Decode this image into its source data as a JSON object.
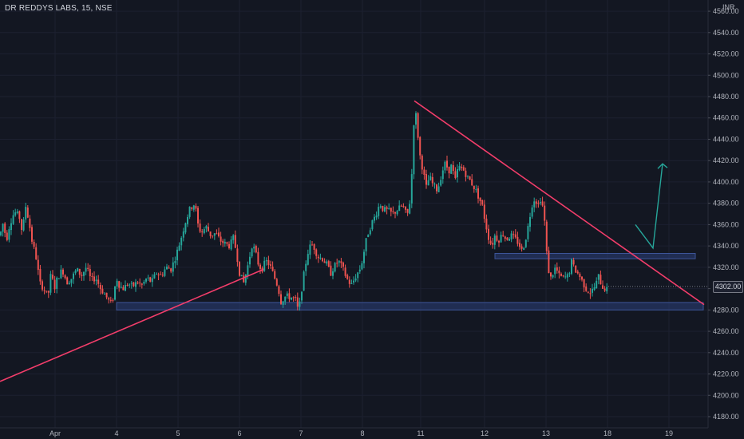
{
  "header": {
    "title": "DR REDDYS LABS, 15, NSE",
    "currency": "INR"
  },
  "current_price_label": "4302.00",
  "colors": {
    "background": "#131722",
    "up": "#26a69a",
    "down": "#ef5350",
    "trendline": "#f23d6a",
    "zone": "#2b3f7a",
    "arrow": "#26a69a",
    "grid": "#1c2030"
  },
  "chart_data": {
    "type": "candlestick",
    "title": "DR REDDYS LABS, 15, NSE",
    "x_ticks": [
      "Apr",
      "4",
      "5",
      "6",
      "7",
      "8",
      "11",
      "12",
      "13",
      "18",
      "19"
    ],
    "y_ticks": [
      4180,
      4200,
      4220,
      4240,
      4260,
      4280,
      4300,
      4320,
      4340,
      4360,
      4380,
      4400,
      4420,
      4440,
      4460,
      4480,
      4500,
      4520,
      4540,
      4560
    ],
    "ylim": [
      4170,
      4570
    ],
    "price_path": [
      [
        0,
        4350
      ],
      [
        4,
        4362
      ],
      [
        8,
        4345
      ],
      [
        12,
        4360
      ],
      [
        18,
        4372
      ],
      [
        24,
        4368
      ],
      [
        28,
        4352
      ],
      [
        32,
        4378
      ],
      [
        36,
        4364
      ],
      [
        40,
        4345
      ],
      [
        45,
        4330
      ],
      [
        50,
        4305
      ],
      [
        55,
        4300
      ],
      [
        60,
        4292
      ],
      [
        64,
        4315
      ],
      [
        68,
        4300
      ],
      [
        72,
        4310
      ],
      [
        78,
        4318
      ],
      [
        84,
        4306
      ],
      [
        90,
        4310
      ],
      [
        96,
        4318
      ],
      [
        102,
        4312
      ],
      [
        108,
        4320
      ],
      [
        114,
        4308
      ],
      [
        120,
        4310
      ],
      [
        126,
        4300
      ],
      [
        131,
        4295
      ],
      [
        135,
        4290
      ],
      [
        140,
        4285
      ],
      [
        146,
        4310
      ],
      [
        150,
        4302
      ],
      [
        155,
        4300
      ],
      [
        160,
        4305
      ],
      [
        166,
        4302
      ],
      [
        172,
        4306
      ],
      [
        178,
        4303
      ],
      [
        184,
        4310
      ],
      [
        190,
        4306
      ],
      [
        196,
        4315
      ],
      [
        202,
        4312
      ],
      [
        208,
        4320
      ],
      [
        214,
        4318
      ],
      [
        220,
        4330
      ],
      [
        226,
        4345
      ],
      [
        232,
        4362
      ],
      [
        238,
        4375
      ],
      [
        244,
        4380
      ],
      [
        248,
        4360
      ],
      [
        252,
        4352
      ],
      [
        258,
        4358
      ],
      [
        264,
        4350
      ],
      [
        270,
        4352
      ],
      [
        276,
        4345
      ],
      [
        282,
        4342
      ],
      [
        288,
        4340
      ],
      [
        292,
        4348
      ],
      [
        296,
        4335
      ],
      [
        300,
        4315
      ],
      [
        305,
        4305
      ],
      [
        310,
        4320
      ],
      [
        316,
        4342
      ],
      [
        320,
        4334
      ],
      [
        324,
        4322
      ],
      [
        328,
        4318
      ],
      [
        333,
        4326
      ],
      [
        338,
        4322
      ],
      [
        344,
        4310
      ],
      [
        348,
        4302
      ],
      [
        352,
        4288
      ],
      [
        358,
        4293
      ],
      [
        364,
        4292
      ],
      [
        370,
        4290
      ],
      [
        374,
        4278
      ],
      [
        378,
        4300
      ],
      [
        382,
        4320
      ],
      [
        386,
        4335
      ],
      [
        390,
        4342
      ],
      [
        394,
        4338
      ],
      [
        398,
        4330
      ],
      [
        404,
        4328
      ],
      [
        410,
        4322
      ],
      [
        414,
        4314
      ],
      [
        418,
        4320
      ],
      [
        424,
        4326
      ],
      [
        430,
        4318
      ],
      [
        434,
        4310
      ],
      [
        440,
        4303
      ],
      [
        446,
        4312
      ],
      [
        452,
        4320
      ],
      [
        456,
        4335
      ],
      [
        460,
        4350
      ],
      [
        466,
        4362
      ],
      [
        470,
        4368
      ],
      [
        476,
        4380
      ],
      [
        480,
        4374
      ],
      [
        486,
        4373
      ],
      [
        492,
        4370
      ],
      [
        498,
        4374
      ],
      [
        504,
        4378
      ],
      [
        510,
        4368
      ],
      [
        514,
        4384
      ],
      [
        516,
        4410
      ],
      [
        518,
        4452
      ],
      [
        520,
        4470
      ],
      [
        522,
        4455
      ],
      [
        526,
        4425
      ],
      [
        530,
        4410
      ],
      [
        534,
        4395
      ],
      [
        538,
        4405
      ],
      [
        542,
        4398
      ],
      [
        548,
        4392
      ],
      [
        554,
        4410
      ],
      [
        558,
        4418
      ],
      [
        562,
        4410
      ],
      [
        566,
        4416
      ],
      [
        570,
        4400
      ],
      [
        574,
        4414
      ],
      [
        580,
        4412
      ],
      [
        586,
        4404
      ],
      [
        590,
        4400
      ],
      [
        596,
        4392
      ],
      [
        600,
        4385
      ],
      [
        604,
        4378
      ],
      [
        608,
        4362
      ],
      [
        612,
        4348
      ],
      [
        616,
        4340
      ],
      [
        620,
        4350
      ],
      [
        624,
        4345
      ],
      [
        630,
        4352
      ],
      [
        634,
        4346
      ],
      [
        640,
        4350
      ],
      [
        646,
        4346
      ],
      [
        650,
        4342
      ],
      [
        654,
        4335
      ],
      [
        658,
        4345
      ],
      [
        662,
        4360
      ],
      [
        666,
        4378
      ],
      [
        670,
        4385
      ],
      [
        674,
        4378
      ],
      [
        678,
        4386
      ],
      [
        682,
        4365
      ],
      [
        686,
        4320
      ],
      [
        690,
        4310
      ],
      [
        696,
        4320
      ],
      [
        700,
        4312
      ],
      [
        706,
        4310
      ],
      [
        712,
        4312
      ],
      [
        716,
        4325
      ],
      [
        720,
        4318
      ],
      [
        726,
        4312
      ],
      [
        730,
        4306
      ],
      [
        734,
        4300
      ],
      [
        740,
        4296
      ],
      [
        746,
        4303
      ],
      [
        750,
        4312
      ],
      [
        754,
        4302
      ],
      [
        758,
        4300
      ],
      [
        762,
        4298
      ]
    ],
    "trendlines": [
      {
        "from": [
          0,
          4213
        ],
        "to": [
          330,
          4318
        ]
      },
      {
        "from": [
          519,
          4476
        ],
        "to": [
          882,
          4285
        ]
      }
    ],
    "zones": [
      {
        "x_from": 146,
        "x_to": 881,
        "y_from": 4280,
        "y_to": 4287
      },
      {
        "x_from": 620,
        "x_to": 871,
        "y_from": 4328,
        "y_to": 4333
      }
    ],
    "projection_arrow": [
      [
        796,
        4360
      ],
      [
        818,
        4338
      ],
      [
        830,
        4417
      ]
    ],
    "last_price": 4302.0
  }
}
